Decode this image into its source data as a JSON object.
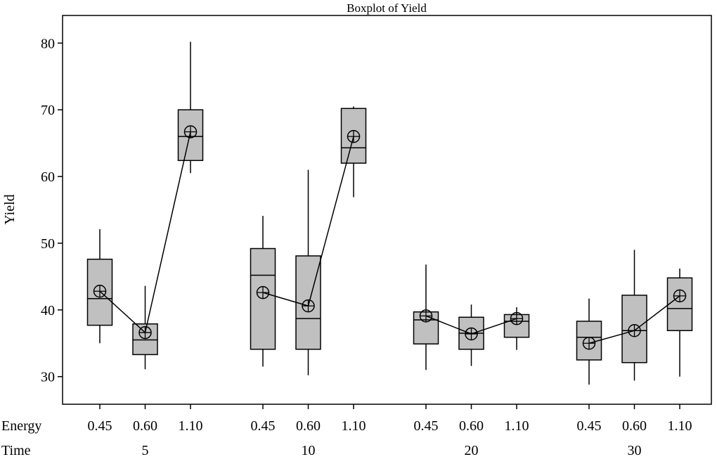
{
  "chart_data": {
    "type": "boxplot",
    "title": "Boxplot of Yield",
    "ylabel": "Yield",
    "ylim": [
      27,
      83
    ],
    "yticks": [
      30,
      40,
      50,
      60,
      70,
      80
    ],
    "grid": false,
    "x_row_labels": {
      "energy": "Energy",
      "time": "Time"
    },
    "box_fill": "#c0c0c0",
    "groups": [
      {
        "time": "5",
        "boxes": [
          {
            "energy": "0.45",
            "min": 35.0,
            "q1": 37.7,
            "median": 41.7,
            "q3": 47.6,
            "max": 52.1,
            "mean": 42.8
          },
          {
            "energy": "0.60",
            "min": 31.1,
            "q1": 33.3,
            "median": 35.5,
            "q3": 37.9,
            "max": 43.6,
            "mean": 36.6
          },
          {
            "energy": "1.10",
            "min": 60.5,
            "q1": 62.4,
            "median": 66.0,
            "q3": 70.0,
            "max": 80.2,
            "mean": 66.7
          }
        ]
      },
      {
        "time": "10",
        "boxes": [
          {
            "energy": "0.45",
            "min": 31.5,
            "q1": 34.1,
            "median": 45.2,
            "q3": 49.2,
            "max": 54.1,
            "mean": 42.6
          },
          {
            "energy": "0.60",
            "min": 30.2,
            "q1": 34.1,
            "median": 38.7,
            "q3": 48.1,
            "max": 61.0,
            "mean": 40.6
          },
          {
            "energy": "1.10",
            "min": 56.9,
            "q1": 62.0,
            "median": 64.3,
            "q3": 70.2,
            "max": 70.5,
            "mean": 66.0
          }
        ]
      },
      {
        "time": "20",
        "boxes": [
          {
            "energy": "0.45",
            "min": 31.0,
            "q1": 34.9,
            "median": 38.5,
            "q3": 39.7,
            "max": 46.8,
            "mean": 39.1
          },
          {
            "energy": "0.60",
            "min": 31.6,
            "q1": 34.1,
            "median": 36.5,
            "q3": 38.9,
            "max": 40.8,
            "mean": 36.4
          },
          {
            "energy": "1.10",
            "min": 34.0,
            "q1": 35.9,
            "median": 38.3,
            "q3": 39.3,
            "max": 40.4,
            "mean": 38.7
          }
        ]
      },
      {
        "time": "30",
        "boxes": [
          {
            "energy": "0.45",
            "min": 28.8,
            "q1": 32.5,
            "median": 35.9,
            "q3": 38.3,
            "max": 41.7,
            "mean": 35.0
          },
          {
            "energy": "0.60",
            "min": 29.4,
            "q1": 32.1,
            "median": 36.9,
            "q3": 42.2,
            "max": 49.0,
            "mean": 36.9
          },
          {
            "energy": "1.10",
            "min": 30.0,
            "q1": 36.9,
            "median": 40.2,
            "q3": 44.8,
            "max": 46.2,
            "mean": 42.1
          }
        ]
      }
    ]
  }
}
